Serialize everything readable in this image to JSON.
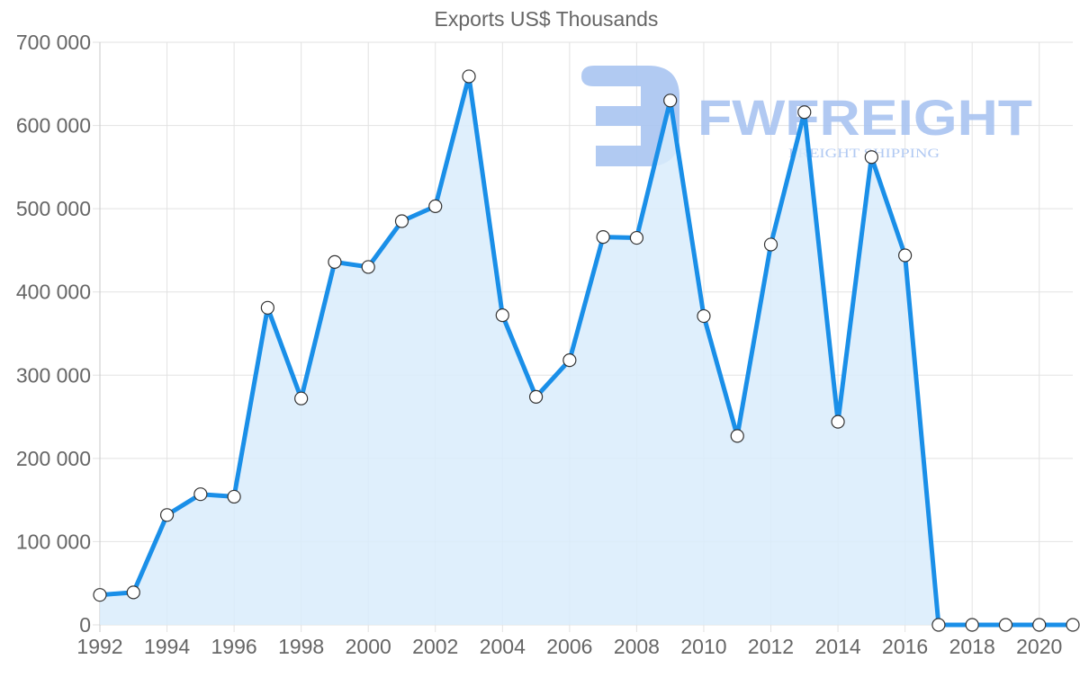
{
  "chart_data": {
    "type": "line",
    "title": "Exports US$ Thousands",
    "xlabel": "",
    "ylabel": "",
    "ylim": [
      0,
      700000
    ],
    "grid": true,
    "legend": null,
    "fill": true,
    "line_color": "#1a8fe8",
    "fill_color": "#d9ecfc",
    "y_ticks": [
      "0",
      "100 000",
      "200 000",
      "300 000",
      "400 000",
      "500 000",
      "600 000",
      "700 000"
    ],
    "x_ticks": [
      "1992",
      "1994",
      "1996",
      "1998",
      "2000",
      "2002",
      "2004",
      "2006",
      "2008",
      "2010",
      "2012",
      "2014",
      "2016",
      "2018",
      "2020"
    ],
    "x": [
      1992,
      1993,
      1994,
      1995,
      1996,
      1997,
      1998,
      1999,
      2000,
      2001,
      2002,
      2003,
      2004,
      2005,
      2006,
      2007,
      2008,
      2009,
      2010,
      2011,
      2012,
      2013,
      2014,
      2015,
      2016,
      2017,
      2018,
      2019,
      2020,
      2021
    ],
    "series": [
      {
        "name": "Exports US$ Thousands",
        "values": [
          36000,
          39000,
          132000,
          157000,
          154000,
          381000,
          272000,
          436000,
          430000,
          485000,
          503000,
          659000,
          372000,
          274000,
          318000,
          466000,
          465000,
          630000,
          371000,
          227000,
          457000,
          616000,
          244000,
          562000,
          444000,
          0,
          0,
          0,
          0,
          0
        ]
      }
    ]
  },
  "watermark": {
    "brand": "FWFREIGHT",
    "tagline": "FREIGHT SHIPPING"
  }
}
